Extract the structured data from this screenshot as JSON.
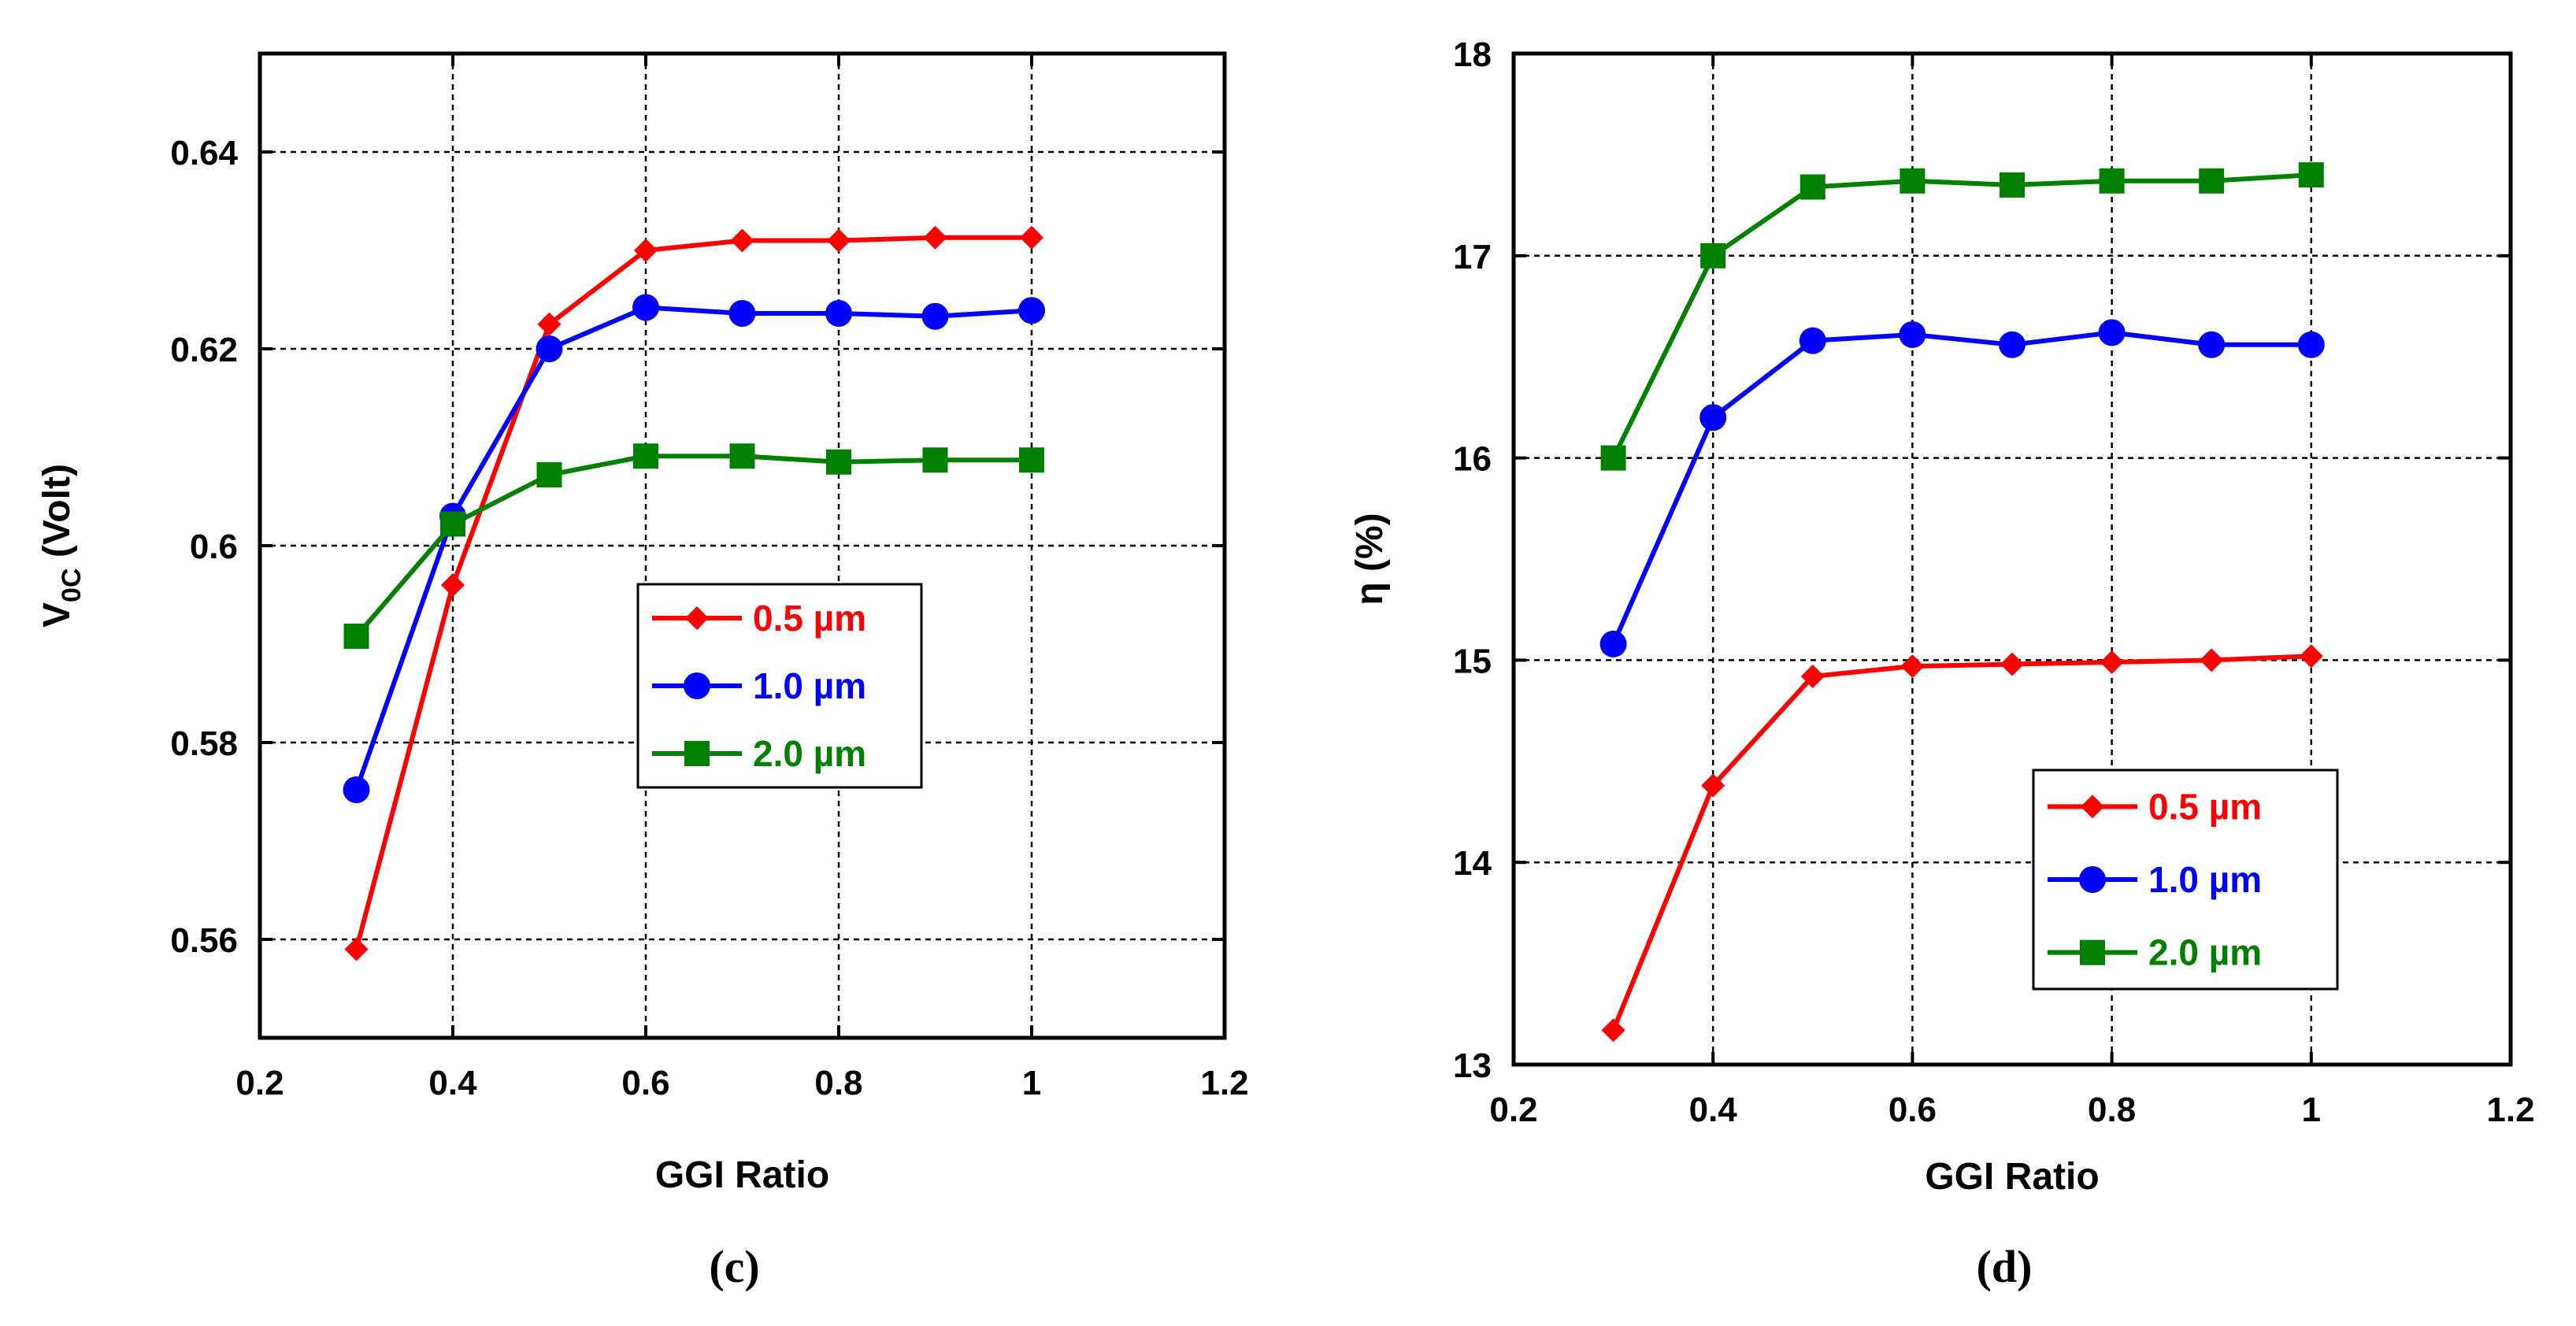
{
  "chart_data": [
    {
      "type": "line",
      "panel_label": "(c)",
      "xlabel": "GGI Ratio",
      "ylabel_main": "V",
      "ylabel_sub": "0C",
      "ylabel_unit": "(Volt)",
      "xlim": [
        0.2,
        1.2
      ],
      "ylim": [
        0.55,
        0.65
      ],
      "xticks": [
        0.2,
        0.4,
        0.6,
        0.8,
        1,
        1.2
      ],
      "xtick_labels": [
        "0.2",
        "0.4",
        "0.6",
        "0.8",
        "1",
        "1.2"
      ],
      "yticks": [
        0.56,
        0.58,
        0.6,
        0.62,
        0.64
      ],
      "ytick_labels": [
        "0.56",
        "0.58",
        "0.6",
        "0.62",
        "0.64"
      ],
      "grid": true,
      "legend_position": "center-right",
      "series": [
        {
          "name": "0.5 µm",
          "color": "#ff0000",
          "marker": "diamond",
          "x": [
            0.3,
            0.4,
            0.5,
            0.6,
            0.7,
            0.8,
            0.9,
            1.0
          ],
          "y": [
            0.559,
            0.596,
            0.6225,
            0.63,
            0.631,
            0.631,
            0.6313,
            0.6313
          ]
        },
        {
          "name": "1.0 µm",
          "color": "#0000ff",
          "marker": "circle",
          "x": [
            0.3,
            0.4,
            0.5,
            0.6,
            0.7,
            0.8,
            0.9,
            1.0
          ],
          "y": [
            0.5752,
            0.603,
            0.62,
            0.6242,
            0.6236,
            0.6236,
            0.6233,
            0.6239
          ]
        },
        {
          "name": "2.0 µm",
          "color": "#008000",
          "marker": "square",
          "x": [
            0.3,
            0.4,
            0.5,
            0.6,
            0.7,
            0.8,
            0.9,
            1.0
          ],
          "y": [
            0.5908,
            0.6022,
            0.6072,
            0.6091,
            0.6091,
            0.6085,
            0.6087,
            0.6087
          ]
        }
      ]
    },
    {
      "type": "line",
      "panel_label": "(d)",
      "xlabel": "GGI Ratio",
      "ylabel_main": "η (%)",
      "xlim": [
        0.2,
        1.2
      ],
      "ylim": [
        13,
        18
      ],
      "xticks": [
        0.2,
        0.4,
        0.6,
        0.8,
        1,
        1.2
      ],
      "xtick_labels": [
        "0.2",
        "0.4",
        "0.6",
        "0.8",
        "1",
        "1.2"
      ],
      "yticks": [
        13,
        14,
        15,
        16,
        17,
        18
      ],
      "ytick_labels": [
        "13",
        "14",
        "15",
        "16",
        "17",
        "18"
      ],
      "grid": true,
      "legend_position": "bottom-right",
      "series": [
        {
          "name": "0.5 µm",
          "color": "#ff0000",
          "marker": "diamond",
          "x": [
            0.3,
            0.4,
            0.5,
            0.6,
            0.7,
            0.8,
            0.9,
            1.0
          ],
          "y": [
            13.17,
            14.38,
            14.92,
            14.97,
            14.98,
            14.99,
            15.0,
            15.02
          ]
        },
        {
          "name": "1.0 µm",
          "color": "#0000ff",
          "marker": "circle",
          "x": [
            0.3,
            0.4,
            0.5,
            0.6,
            0.7,
            0.8,
            0.9,
            1.0
          ],
          "y": [
            15.08,
            16.2,
            16.58,
            16.61,
            16.56,
            16.62,
            16.56,
            16.56
          ]
        },
        {
          "name": "2.0 µm",
          "color": "#008000",
          "marker": "square",
          "x": [
            0.3,
            0.4,
            0.5,
            0.6,
            0.7,
            0.8,
            0.9,
            1.0
          ],
          "y": [
            16.0,
            17.0,
            17.34,
            17.37,
            17.35,
            17.37,
            17.37,
            17.4
          ]
        }
      ]
    }
  ]
}
